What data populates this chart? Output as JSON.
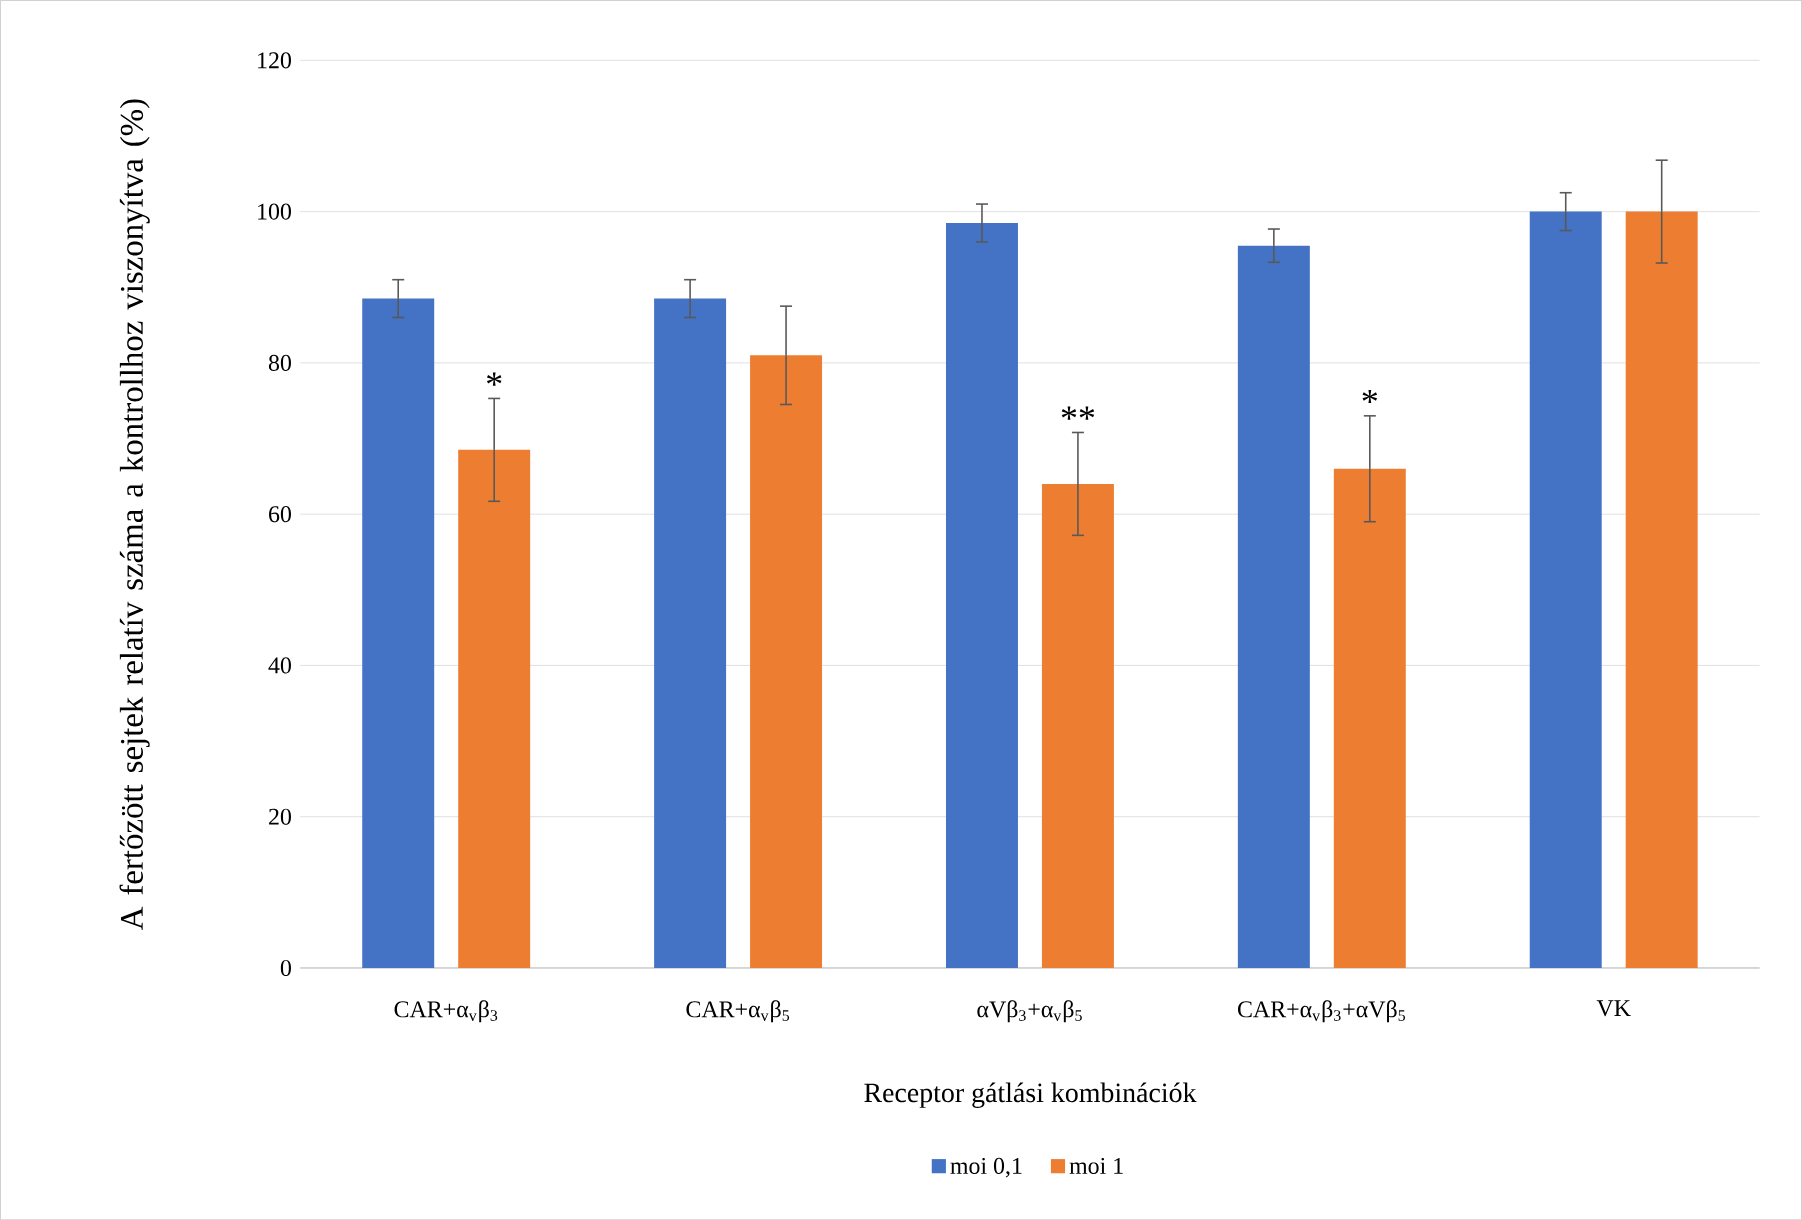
{
  "chart_data": {
    "type": "bar",
    "xlabel": "Receptor gátlási kombinációk",
    "ylabel": "A fertőzött sejtek relatív száma a kontrollhoz viszonyítva  (%)",
    "categories": [
      "CAR+α$_{v}$β$_{3}$",
      "CAR+α$_{v}$β$_{5}$",
      "αVβ$_{3}$+α$_{v}$β$_{5}$",
      "CAR+α$_{v}$β$_{3}$+αVβ$_{5}$",
      "VK"
    ],
    "series": [
      {
        "name": "moi 0,1",
        "color": "#4472c4",
        "values": [
          88.5,
          88.5,
          98.5,
          95.5,
          100
        ],
        "errors": [
          2.5,
          2.5,
          2.5,
          2.2,
          2.5
        ]
      },
      {
        "name": "moi 1",
        "color": "#ed7d31",
        "values": [
          68.5,
          81,
          64,
          66,
          100
        ],
        "errors": [
          6.8,
          6.5,
          6.8,
          7,
          6.8
        ],
        "value_labels": [
          "*",
          null,
          "**",
          "*",
          null
        ]
      }
    ],
    "ylim": [
      0,
      120
    ],
    "yticks": [
      0,
      20,
      40,
      60,
      80,
      100,
      120
    ],
    "grid": "y",
    "legend": "bottom"
  }
}
